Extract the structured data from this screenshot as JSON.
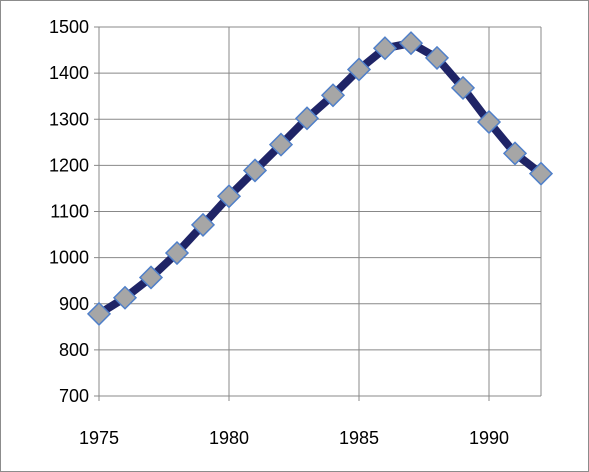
{
  "chart_data": {
    "type": "line",
    "x": [
      1975,
      1976,
      1977,
      1978,
      1979,
      1980,
      1981,
      1982,
      1983,
      1984,
      1985,
      1986,
      1987,
      1988,
      1989,
      1990,
      1991,
      1992
    ],
    "series": [
      {
        "values": [
          878,
          913,
          957,
          1010,
          1071,
          1133,
          1189,
          1245,
          1302,
          1352,
          1408,
          1454,
          1465,
          1433,
          1368,
          1294,
          1226,
          1182
        ]
      }
    ],
    "xlim": [
      1975,
      1992
    ],
    "ylim": [
      700,
      1500
    ],
    "xticks": [
      1975,
      1980,
      1985,
      1990
    ],
    "yticks": [
      700,
      800,
      900,
      1000,
      1100,
      1200,
      1300,
      1400,
      1500
    ],
    "xtick_labels": [
      "1975",
      "1980",
      "1985",
      "1990"
    ],
    "ytick_labels": [
      "700",
      "800",
      "900",
      "1000",
      "1100",
      "1200",
      "1300",
      "1400",
      "1500"
    ],
    "grid": true,
    "legend": "none",
    "colors": {
      "line": "#1f2466",
      "marker_fill": "#a6a6a6",
      "marker_edge": "#4f7fc9",
      "grid": "#888888",
      "frame": "#8c8c8c"
    },
    "marker": "diamond"
  }
}
